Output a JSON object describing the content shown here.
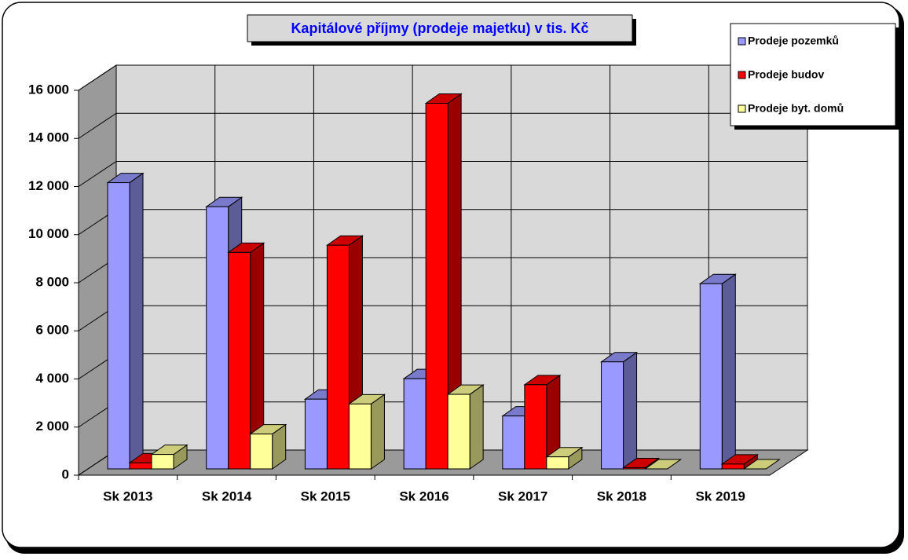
{
  "chart_data": {
    "type": "bar3d",
    "title": "Kapitálové příjmy (prodeje majetku) v tis. Kč",
    "categories": [
      "Sk 2013",
      "Sk 2014",
      "Sk 2015",
      "Sk 2016",
      "Sk 2017",
      "Sk 2018",
      "Sk 2019"
    ],
    "series": [
      {
        "name": "Prodeje pozemků",
        "color": "#9999ff",
        "values": [
          11900,
          10900,
          2900,
          3750,
          2200,
          4450,
          7700
        ]
      },
      {
        "name": "Prodeje budov",
        "color": "#ff0000",
        "values": [
          250,
          9000,
          9300,
          15200,
          3500,
          50,
          200
        ]
      },
      {
        "name": "Prodeje byt. domů",
        "color": "#ffff99",
        "values": [
          600,
          1450,
          2700,
          3100,
          500,
          0,
          0
        ]
      }
    ],
    "ylim": [
      0,
      16000
    ],
    "yticks": [
      0,
      {
        "value": 2000,
        "label": "2 000"
      },
      {
        "value": 4000,
        "label": "4 000"
      },
      {
        "value": 6000,
        "label": "6 000"
      },
      {
        "value": 8000,
        "label": "8 000"
      },
      {
        "value": 10000,
        "label": "10 000"
      },
      {
        "value": 12000,
        "label": "12 000"
      },
      {
        "value": 14000,
        "label": "14 000"
      },
      {
        "value": 16000,
        "label": "16 000"
      }
    ],
    "grid": true,
    "legend": "top-right"
  }
}
